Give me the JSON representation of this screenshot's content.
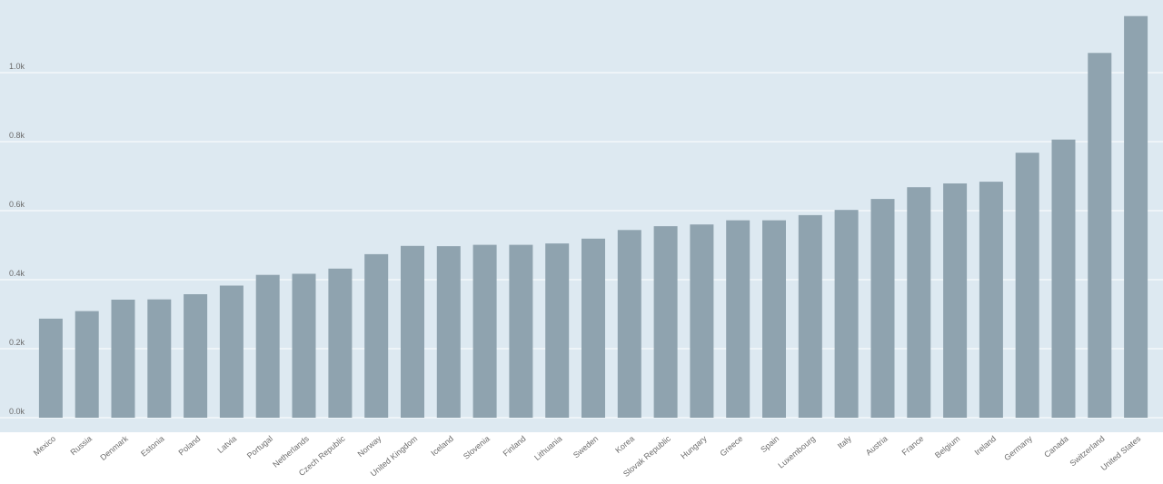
{
  "chart_data": {
    "type": "bar",
    "title": "",
    "xlabel": "",
    "ylabel": "",
    "categories": [
      "Mexico",
      "Russia",
      "Denmark",
      "Estonia",
      "Poland",
      "Latvia",
      "Portugal",
      "Netherlands",
      "Czech Republic",
      "Norway",
      "United Kingdom",
      "Iceland",
      "Slovenia",
      "Finland",
      "Lithuania",
      "Sweden",
      "Korea",
      "Slovak Republic",
      "Hungary",
      "Greece",
      "Spain",
      "Luxembourg",
      "Italy",
      "Austria",
      "France",
      "Belgium",
      "Ireland",
      "Germany",
      "Canada",
      "Switzerland",
      "United States"
    ],
    "values": [
      287,
      309,
      342,
      343,
      358,
      383,
      414,
      417,
      432,
      474,
      498,
      497,
      501,
      501,
      505,
      519,
      544,
      555,
      560,
      572,
      572,
      587,
      602,
      634,
      668,
      679,
      684,
      768,
      806,
      1057,
      1164
    ],
    "yticks": [
      0,
      200,
      400,
      600,
      800,
      1000
    ],
    "ytick_labels": [
      "0.0k",
      "0.2k",
      "0.4k",
      "0.6k",
      "0.8k",
      "1.0k"
    ],
    "ylim": [
      0,
      1200
    ],
    "grid": true,
    "colors": {
      "plot_background": "#dde9f1",
      "bar": "#8fa3af",
      "gridline": "#ffffff",
      "text": "#6b6b6b"
    }
  }
}
